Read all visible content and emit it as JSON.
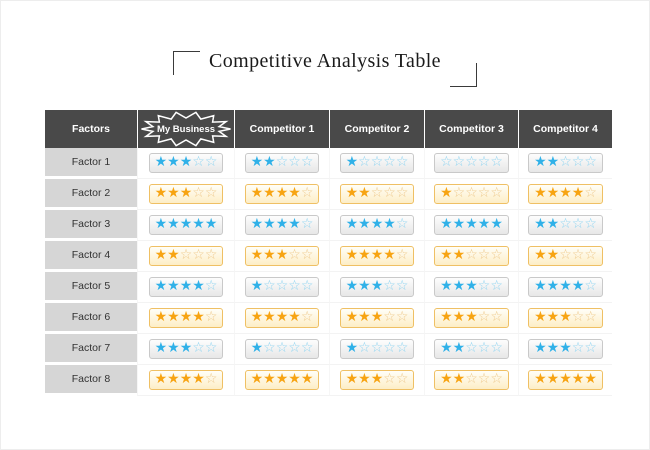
{
  "title": "Competitive Analysis Table",
  "table": {
    "columns": [
      "Factors",
      "My Business",
      "Competitor 1",
      "Competitor 2",
      "Competitor 3",
      "Competitor 4"
    ],
    "max_stars": 5,
    "rows": [
      {
        "factor": "Factor 1",
        "theme": "blue",
        "ratings": [
          3,
          2,
          1,
          0,
          2
        ]
      },
      {
        "factor": "Factor 2",
        "theme": "orange",
        "ratings": [
          3,
          4,
          2,
          1,
          4
        ]
      },
      {
        "factor": "Factor 3",
        "theme": "blue",
        "ratings": [
          5,
          4,
          4,
          5,
          2
        ]
      },
      {
        "factor": "Factor 4",
        "theme": "orange",
        "ratings": [
          2,
          3,
          4,
          2,
          2
        ]
      },
      {
        "factor": "Factor 5",
        "theme": "blue",
        "ratings": [
          4,
          1,
          3,
          3,
          4
        ]
      },
      {
        "factor": "Factor 6",
        "theme": "orange",
        "ratings": [
          4,
          4,
          3,
          3,
          3
        ]
      },
      {
        "factor": "Factor 7",
        "theme": "blue",
        "ratings": [
          3,
          1,
          1,
          2,
          3
        ]
      },
      {
        "factor": "Factor 8",
        "theme": "orange",
        "ratings": [
          4,
          5,
          3,
          2,
          5
        ]
      }
    ]
  },
  "chart_data": {
    "type": "table",
    "title": "Competitive Analysis Table",
    "categories": [
      "Factor 1",
      "Factor 2",
      "Factor 3",
      "Factor 4",
      "Factor 5",
      "Factor 6",
      "Factor 7",
      "Factor 8"
    ],
    "value_unit": "stars out of 5",
    "row_star_colors": [
      "blue",
      "orange",
      "blue",
      "orange",
      "blue",
      "orange",
      "blue",
      "orange"
    ],
    "series": [
      {
        "name": "My Business",
        "values": [
          3,
          3,
          5,
          2,
          4,
          4,
          3,
          4
        ]
      },
      {
        "name": "Competitor 1",
        "values": [
          2,
          4,
          4,
          3,
          1,
          4,
          1,
          5
        ]
      },
      {
        "name": "Competitor 2",
        "values": [
          1,
          2,
          4,
          4,
          3,
          3,
          1,
          3
        ]
      },
      {
        "name": "Competitor 3",
        "values": [
          0,
          1,
          5,
          2,
          3,
          3,
          2,
          2
        ]
      },
      {
        "name": "Competitor 4",
        "values": [
          2,
          4,
          2,
          2,
          4,
          3,
          3,
          5
        ]
      }
    ]
  },
  "icons": {
    "star_filled": "★",
    "star_empty": "☆",
    "starburst_badge": "starburst-badge"
  },
  "colors": {
    "header_bg": "#494949",
    "header_text": "#ffffff",
    "factor_cell_bg": "#d6d6d6",
    "factor_text": "#333333",
    "blue_star": "#30b1e8",
    "blue_star_empty": "#8fd4f1",
    "blue_pill_border": "#c9c9c9",
    "orange_star": "#f7a413",
    "orange_star_empty": "#eec98c",
    "orange_pill_border": "#efc064"
  }
}
